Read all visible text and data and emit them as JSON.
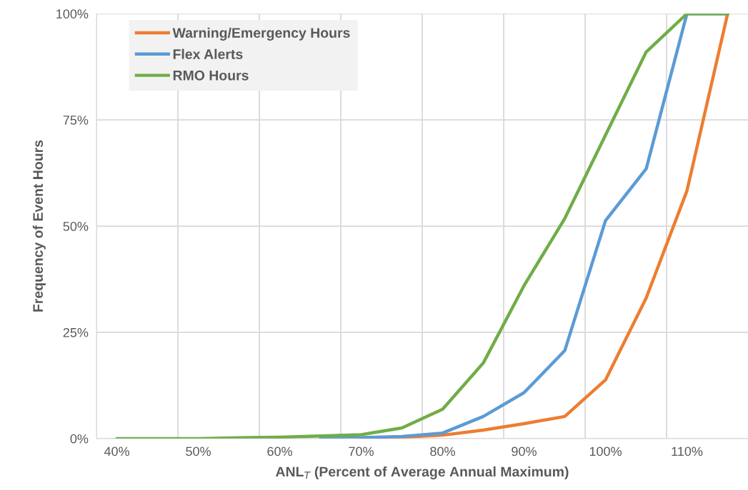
{
  "chart_data": {
    "type": "line",
    "xlabel": "ANL$_{T}$ (Percent of Average Annual Maximum)",
    "ylabel": "Frequency of Event Hours",
    "categories": [
      "40%",
      null,
      "50%",
      null,
      "60%",
      null,
      "70%",
      null,
      "80%",
      null,
      "90%",
      null,
      "100%",
      null,
      "110%",
      null
    ],
    "series": [
      {
        "name": "Warning/Emergency Hours",
        "color": "#ed7d31",
        "values": [
          null,
          null,
          null,
          null,
          null,
          null,
          0.1,
          0.3,
          0.8,
          2,
          3.5,
          5.2,
          13.8,
          33.1,
          58.3,
          100
        ]
      },
      {
        "name": "Flex Alerts",
        "color": "#5b9bd5",
        "values": [
          null,
          null,
          null,
          null,
          null,
          0.1,
          0.2,
          0.5,
          1.3,
          5.2,
          10.8,
          20.7,
          51.3,
          63.5,
          100,
          100
        ]
      },
      {
        "name": "RMO Hours",
        "color": "#70ad47",
        "values": [
          0,
          0,
          0,
          0.2,
          0.3,
          0.6,
          0.9,
          2.5,
          6.9,
          17.8,
          36,
          51.8,
          71.4,
          91,
          100,
          100
        ]
      }
    ],
    "ylim": [
      0,
      100
    ],
    "yticks": [
      {
        "value": 0,
        "label": "0%"
      },
      {
        "value": 25,
        "label": "25%"
      },
      {
        "value": 50,
        "label": "50%"
      },
      {
        "value": 75,
        "label": "75%"
      },
      {
        "value": 100,
        "label": "100%"
      }
    ],
    "grid": true,
    "legend": "top left",
    "marker": "none",
    "line_style": "solid"
  }
}
